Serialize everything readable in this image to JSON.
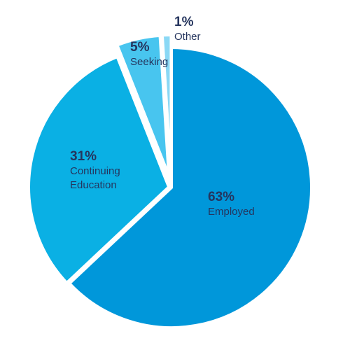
{
  "chart_data": {
    "type": "pie",
    "title": "",
    "slices": [
      {
        "value": 63,
        "percent_label": "63%",
        "label_lines": [
          "Employed"
        ],
        "color": "#0097da"
      },
      {
        "value": 31,
        "percent_label": "31%",
        "label_lines": [
          "Continuing",
          "Education"
        ],
        "color": "#0ab0e4"
      },
      {
        "value": 5,
        "percent_label": "5%",
        "label_lines": [
          "Seeking"
        ],
        "color": "#48c5ef"
      },
      {
        "value": 1,
        "percent_label": "1%",
        "label_lines": [
          "Other"
        ],
        "color": "#8ad8f5"
      }
    ],
    "legend": "none",
    "start_angle_deg": 0,
    "direction": "clockwise",
    "exploded": true
  }
}
